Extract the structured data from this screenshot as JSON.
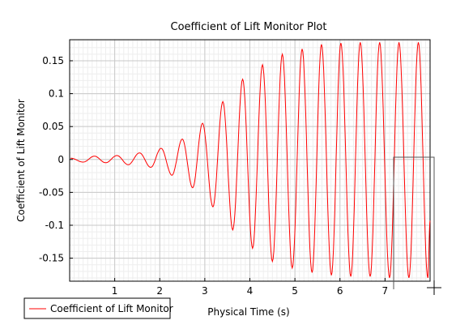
{
  "chart_data": {
    "type": "line",
    "title": "Coefficient of Lift Monitor Plot",
    "xlabel": "Physical Time (s)",
    "ylabel": "Coefficient of Lift Monitor",
    "xlim": [
      0,
      8.0
    ],
    "ylim": [
      -0.185,
      0.182
    ],
    "x_ticks": [
      1,
      2,
      3,
      4,
      5,
      6,
      7
    ],
    "y_ticks": [
      -0.15,
      -0.1,
      -0.05,
      0,
      0.05,
      0.1,
      0.15
    ],
    "y_tick_labels": [
      "-0.15",
      "-0.1",
      "-0.05",
      "0",
      "0.05",
      "0.1",
      "0.15"
    ],
    "grid": true,
    "legend": {
      "position": "bottom-left",
      "entries": [
        "Coefficient of Lift Monitor"
      ]
    },
    "series": [
      {
        "name": "Coefficient of Lift Monitor",
        "color": "#ff0000",
        "x_end": 8.0,
        "peaks": [
          {
            "x": 0.02,
            "y": 0.002
          },
          {
            "x": 0.3,
            "y": -0.004
          },
          {
            "x": 0.55,
            "y": 0.005
          },
          {
            "x": 0.8,
            "y": -0.005
          },
          {
            "x": 1.05,
            "y": 0.006
          },
          {
            "x": 1.3,
            "y": -0.008
          },
          {
            "x": 1.55,
            "y": 0.01
          },
          {
            "x": 1.8,
            "y": -0.012
          },
          {
            "x": 2.03,
            "y": 0.017
          },
          {
            "x": 2.27,
            "y": -0.024
          },
          {
            "x": 2.5,
            "y": 0.031
          },
          {
            "x": 2.73,
            "y": -0.043
          },
          {
            "x": 2.95,
            "y": 0.055
          },
          {
            "x": 3.18,
            "y": -0.072
          },
          {
            "x": 3.4,
            "y": 0.088
          },
          {
            "x": 3.62,
            "y": -0.107
          },
          {
            "x": 3.84,
            "y": 0.122
          },
          {
            "x": 4.06,
            "y": -0.135
          },
          {
            "x": 4.28,
            "y": 0.144
          },
          {
            "x": 4.5,
            "y": -0.155
          },
          {
            "x": 4.72,
            "y": 0.16
          },
          {
            "x": 4.94,
            "y": -0.165
          },
          {
            "x": 5.16,
            "y": 0.168
          },
          {
            "x": 5.38,
            "y": -0.172
          },
          {
            "x": 5.59,
            "y": 0.175
          },
          {
            "x": 5.81,
            "y": -0.176
          },
          {
            "x": 6.02,
            "y": 0.177
          },
          {
            "x": 6.24,
            "y": -0.178
          },
          {
            "x": 6.45,
            "y": 0.178
          },
          {
            "x": 6.67,
            "y": -0.178
          },
          {
            "x": 6.88,
            "y": 0.178
          },
          {
            "x": 7.1,
            "y": -0.18
          },
          {
            "x": 7.31,
            "y": 0.178
          },
          {
            "x": 7.53,
            "y": -0.18
          },
          {
            "x": 7.74,
            "y": 0.178
          },
          {
            "x": 7.95,
            "y": -0.18
          },
          {
            "x": 8.0,
            "y": -0.093
          }
        ]
      }
    ]
  }
}
